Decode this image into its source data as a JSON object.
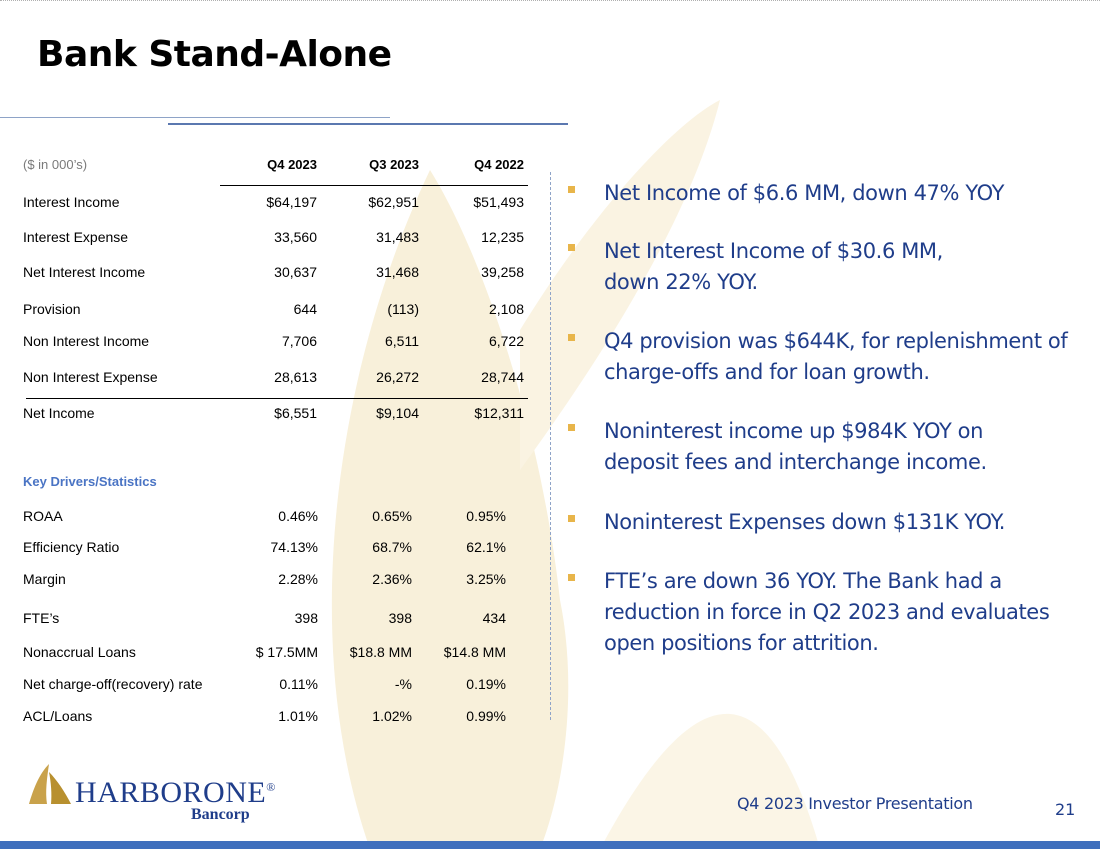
{
  "title": "Bank Stand-Alone",
  "financials": {
    "header": {
      "label": "($ in 000’s)",
      "cols": [
        "Q4 2023",
        "Q3 2023",
        "Q4 2022"
      ]
    },
    "rows": [
      {
        "label": "Interest Income",
        "values": [
          "$64,197",
          "$62,951",
          "$51,493"
        ]
      },
      {
        "label": "Interest Expense",
        "values": [
          "33,560",
          "31,483",
          "12,235"
        ]
      },
      {
        "label": "Net Interest Income",
        "values": [
          "30,637",
          "31,468",
          "39,258"
        ]
      },
      {
        "label": "Provision",
        "values": [
          "644",
          "(113)",
          "2,108"
        ]
      },
      {
        "label": "Non Interest Income",
        "values": [
          "7,706",
          "6,511",
          "6,722"
        ]
      },
      {
        "label": "Non Interest Expense",
        "values": [
          "28,613",
          "26,272",
          "28,744"
        ]
      },
      {
        "label": "Net Income",
        "values": [
          "$6,551",
          "$9,104",
          "$12,311"
        ]
      }
    ]
  },
  "key_drivers": {
    "title": "Key Drivers/Statistics",
    "rows": [
      {
        "label": "ROAA",
        "values": [
          "0.46%",
          "0.65%",
          "0.95%"
        ]
      },
      {
        "label": "Efficiency Ratio",
        "values": [
          "74.13%",
          "68.7%",
          "62.1%"
        ]
      },
      {
        "label": "Margin",
        "values": [
          "2.28%",
          "2.36%",
          "3.25%"
        ]
      },
      {
        "label": "FTE’s",
        "values": [
          "398",
          "398",
          "434"
        ]
      },
      {
        "label": "Nonaccrual Loans",
        "values": [
          "$ 17.5MM",
          "$18.8 MM",
          "$14.8 MM"
        ]
      },
      {
        "label": "Net charge-off(recovery) rate",
        "values": [
          "0.11%",
          "-%",
          "0.19%"
        ]
      },
      {
        "label": "ACL/Loans",
        "values": [
          "1.01%",
          "1.02%",
          "0.99%"
        ]
      }
    ]
  },
  "bullets": [
    "Net Income of $6.6 MM, down 47% YOY",
    "Net Interest Income of $30.6 MM, down 22% YOY.",
    "Q4 provision was $644K, for replenishment of charge-offs and for loan growth.",
    "Noninterest income up $984K YOY on deposit fees and interchange income.",
    "Noninterest Expenses down $131K YOY.",
    "FTE’s are down 36 YOY. The Bank had a reduction in force in Q2 2023 and evaluates open positions for attrition."
  ],
  "logo": {
    "name_part1": "HARBOR",
    "name_part2": "ONE",
    "mark": "®",
    "sub": "Bancorp"
  },
  "footer": {
    "presentation": "Q4 2023 Investor Presentation",
    "page": "21"
  },
  "colors": {
    "accent_blue": "#1f3d8a",
    "bar_blue": "#3f6fbd",
    "bullet_gold": "#e8b54a",
    "sail_cream": "#f8f0da"
  }
}
